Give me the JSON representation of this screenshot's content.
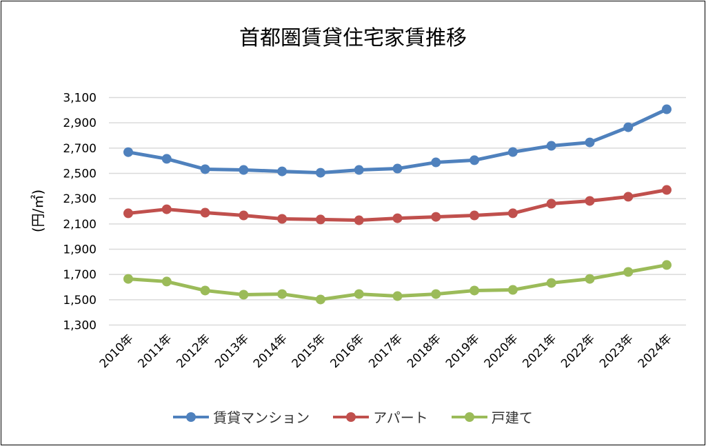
{
  "chart_data": {
    "type": "line",
    "title": "首都圏賃貸住宅家賃推移",
    "xlabel": "",
    "ylabel": "(円/㎡)",
    "ylim": [
      1300,
      3100
    ],
    "yticks": [
      1300,
      1500,
      1700,
      1900,
      2100,
      2300,
      2500,
      2700,
      2900,
      3100
    ],
    "ytick_labels": [
      "1,300",
      "1,500",
      "1,700",
      "1,900",
      "2,100",
      "2,300",
      "2,500",
      "2,700",
      "2,900",
      "3,100"
    ],
    "grid": true,
    "legend_position": "bottom",
    "categories": [
      "2010年",
      "2011年",
      "2012年",
      "2013年",
      "2014年",
      "2015年",
      "2016年",
      "2017年",
      "2018年",
      "2019年",
      "2020年",
      "2021年",
      "2022年",
      "2023年",
      "2024年"
    ],
    "series": [
      {
        "name": "賃貸マンション",
        "color": "#4F81BD",
        "values": [
          2668,
          2615,
          2533,
          2527,
          2516,
          2505,
          2527,
          2538,
          2587,
          2604,
          2669,
          2718,
          2745,
          2865,
          3007
        ]
      },
      {
        "name": "アパート",
        "color": "#C0504D",
        "values": [
          2184,
          2216,
          2189,
          2167,
          2140,
          2135,
          2129,
          2145,
          2156,
          2167,
          2184,
          2260,
          2282,
          2315,
          2369
        ]
      },
      {
        "name": "戸建て",
        "color": "#9BBB59",
        "values": [
          1665,
          1644,
          1573,
          1540,
          1545,
          1502,
          1545,
          1529,
          1545,
          1573,
          1578,
          1633,
          1665,
          1720,
          1775
        ]
      }
    ]
  }
}
